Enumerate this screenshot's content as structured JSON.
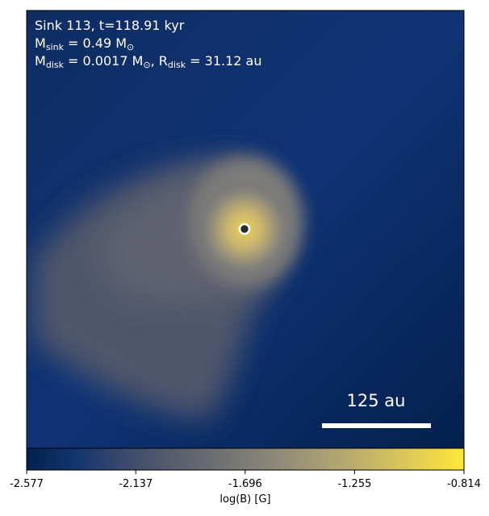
{
  "chart_data": {
    "type": "image",
    "annotations": [
      [
        {
          "text": "Sink 113, t=118.91 kyr",
          "sub": false
        }
      ],
      [
        {
          "text": "M",
          "sub": false
        },
        {
          "text": "sink",
          "sub": true
        },
        {
          "text": " = 0.49 M",
          "sub": false
        },
        {
          "text": "⊙",
          "sub": true
        }
      ],
      [
        {
          "text": "M",
          "sub": false
        },
        {
          "text": "disk",
          "sub": true
        },
        {
          "text": " = 0.0017 M",
          "sub": false
        },
        {
          "text": "⊙",
          "sub": true
        },
        {
          "text": ", R",
          "sub": false
        },
        {
          "text": "disk",
          "sub": true
        },
        {
          "text": " = 31.12 au",
          "sub": false
        }
      ]
    ],
    "scale_bar_label": "125 au",
    "colorbar": {
      "label": "log(B) [G]",
      "lim": [
        -2.577,
        -0.814
      ],
      "ticks": [
        -2.577,
        -2.137,
        -1.696,
        -1.255,
        -0.814
      ],
      "colormap": [
        "#00224e",
        "#123570",
        "#3b496c",
        "#575d6d",
        "#707173",
        "#8a8678",
        "#a59c74",
        "#c3b369",
        "#e1cc55",
        "#fee838"
      ]
    }
  }
}
